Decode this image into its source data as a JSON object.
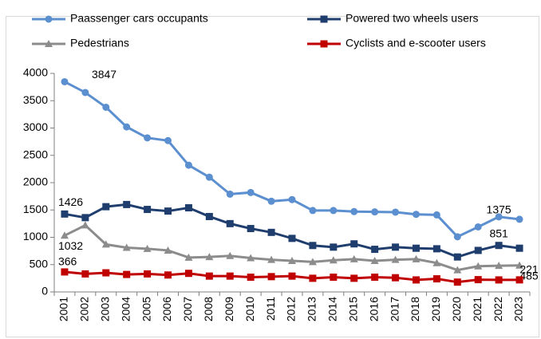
{
  "chart_data": {
    "type": "line",
    "categories": [
      "2001",
      "2002",
      "2003",
      "2004",
      "2005",
      "2006",
      "2007",
      "2008",
      "2009",
      "2010",
      "2011",
      "2012",
      "2013",
      "2014",
      "2015",
      "2016",
      "2017",
      "2018",
      "2019",
      "2020",
      "2021",
      "2022",
      "2023"
    ],
    "series": [
      {
        "name": "Paassenger cars occupants",
        "color": "#5b8fcf",
        "marker": "circle",
        "values": [
          3847,
          3650,
          3380,
          3020,
          2820,
          2770,
          2320,
          2100,
          1790,
          1820,
          1660,
          1690,
          1490,
          1490,
          1470,
          1465,
          1460,
          1420,
          1410,
          1010,
          1190,
          1375,
          1330
        ],
        "value_labels": [
          "3847",
          null,
          null,
          null,
          null,
          null,
          null,
          null,
          null,
          null,
          null,
          null,
          null,
          null,
          null,
          null,
          null,
          null,
          null,
          null,
          null,
          "1375",
          null
        ]
      },
      {
        "name": "Powered two wheels users",
        "color": "#1f3e6e",
        "marker": "square",
        "values": [
          1426,
          1360,
          1560,
          1600,
          1510,
          1480,
          1540,
          1380,
          1250,
          1160,
          1090,
          980,
          850,
          820,
          880,
          780,
          820,
          800,
          790,
          640,
          760,
          851,
          800
        ],
        "value_labels": [
          "1426",
          null,
          null,
          null,
          null,
          null,
          null,
          null,
          null,
          null,
          null,
          null,
          null,
          null,
          null,
          null,
          null,
          null,
          null,
          null,
          null,
          "851",
          null
        ]
      },
      {
        "name": "Pedestrians",
        "color": "#8c8c8c",
        "marker": "triangle",
        "values": [
          1032,
          1220,
          870,
          810,
          790,
          760,
          630,
          640,
          660,
          620,
          590,
          570,
          550,
          580,
          600,
          570,
          590,
          600,
          530,
          400,
          470,
          480,
          485
        ],
        "value_labels": [
          "1032",
          null,
          null,
          null,
          null,
          null,
          null,
          null,
          null,
          null,
          null,
          null,
          null,
          null,
          null,
          null,
          null,
          null,
          null,
          null,
          null,
          null,
          "485"
        ]
      },
      {
        "name": "Cyclists and e-scooter users",
        "color": "#c00000",
        "marker": "square",
        "values": [
          366,
          330,
          350,
          320,
          330,
          310,
          340,
          290,
          290,
          270,
          280,
          290,
          250,
          270,
          250,
          270,
          260,
          220,
          240,
          180,
          225,
          220,
          221
        ],
        "value_labels": [
          "366",
          null,
          null,
          null,
          null,
          null,
          null,
          null,
          null,
          null,
          null,
          null,
          null,
          null,
          null,
          null,
          null,
          null,
          null,
          null,
          null,
          null,
          "221"
        ]
      }
    ],
    "ylim": [
      0,
      4000
    ],
    "yticks": [
      0,
      500,
      1000,
      1500,
      2000,
      2500,
      3000,
      3500,
      4000
    ],
    "grid": false
  }
}
